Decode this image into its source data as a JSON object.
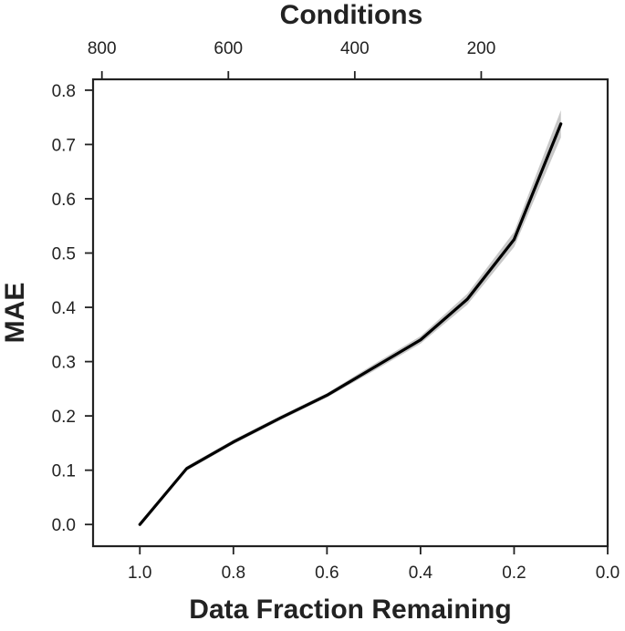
{
  "chart_data": {
    "type": "line",
    "title": "",
    "xlabel": "Data Fraction Remaining",
    "ylabel": "MAE",
    "top_xlabel": "Conditions",
    "xlim": [
      1.1,
      0.0
    ],
    "ylim": [
      -0.04,
      0.82
    ],
    "x_ticks": [
      1.0,
      0.8,
      0.6,
      0.4,
      0.2,
      0.0
    ],
    "x_tick_labels": [
      "1.0",
      "0.8",
      "0.6",
      "0.4",
      "0.2",
      "0.0"
    ],
    "y_ticks": [
      0.0,
      0.1,
      0.2,
      0.3,
      0.4,
      0.5,
      0.6,
      0.7,
      0.8
    ],
    "y_tick_labels": [
      "0.0",
      "0.1",
      "0.2",
      "0.3",
      "0.4",
      "0.5",
      "0.6",
      "0.7",
      "0.8"
    ],
    "top_ticks": [
      800,
      600,
      400,
      200
    ],
    "top_tick_labels": [
      "800",
      "600",
      "400",
      "200"
    ],
    "top_axis_total_conditions": 740,
    "grid": false,
    "legend": "none",
    "line_color": "#000000",
    "band_color": "#c8c8c8",
    "series": [
      {
        "x": [
          1.0,
          0.9,
          0.8,
          0.7,
          0.6,
          0.5,
          0.4,
          0.3,
          0.2,
          0.1
        ],
        "y": [
          0.0,
          0.103,
          0.152,
          0.196,
          0.238,
          0.289,
          0.34,
          0.415,
          0.525,
          0.738
        ],
        "lower": [
          0.0,
          0.099,
          0.148,
          0.192,
          0.234,
          0.283,
          0.333,
          0.405,
          0.511,
          0.713
        ],
        "upper": [
          0.0,
          0.107,
          0.156,
          0.2,
          0.242,
          0.295,
          0.347,
          0.425,
          0.539,
          0.763
        ]
      }
    ]
  }
}
